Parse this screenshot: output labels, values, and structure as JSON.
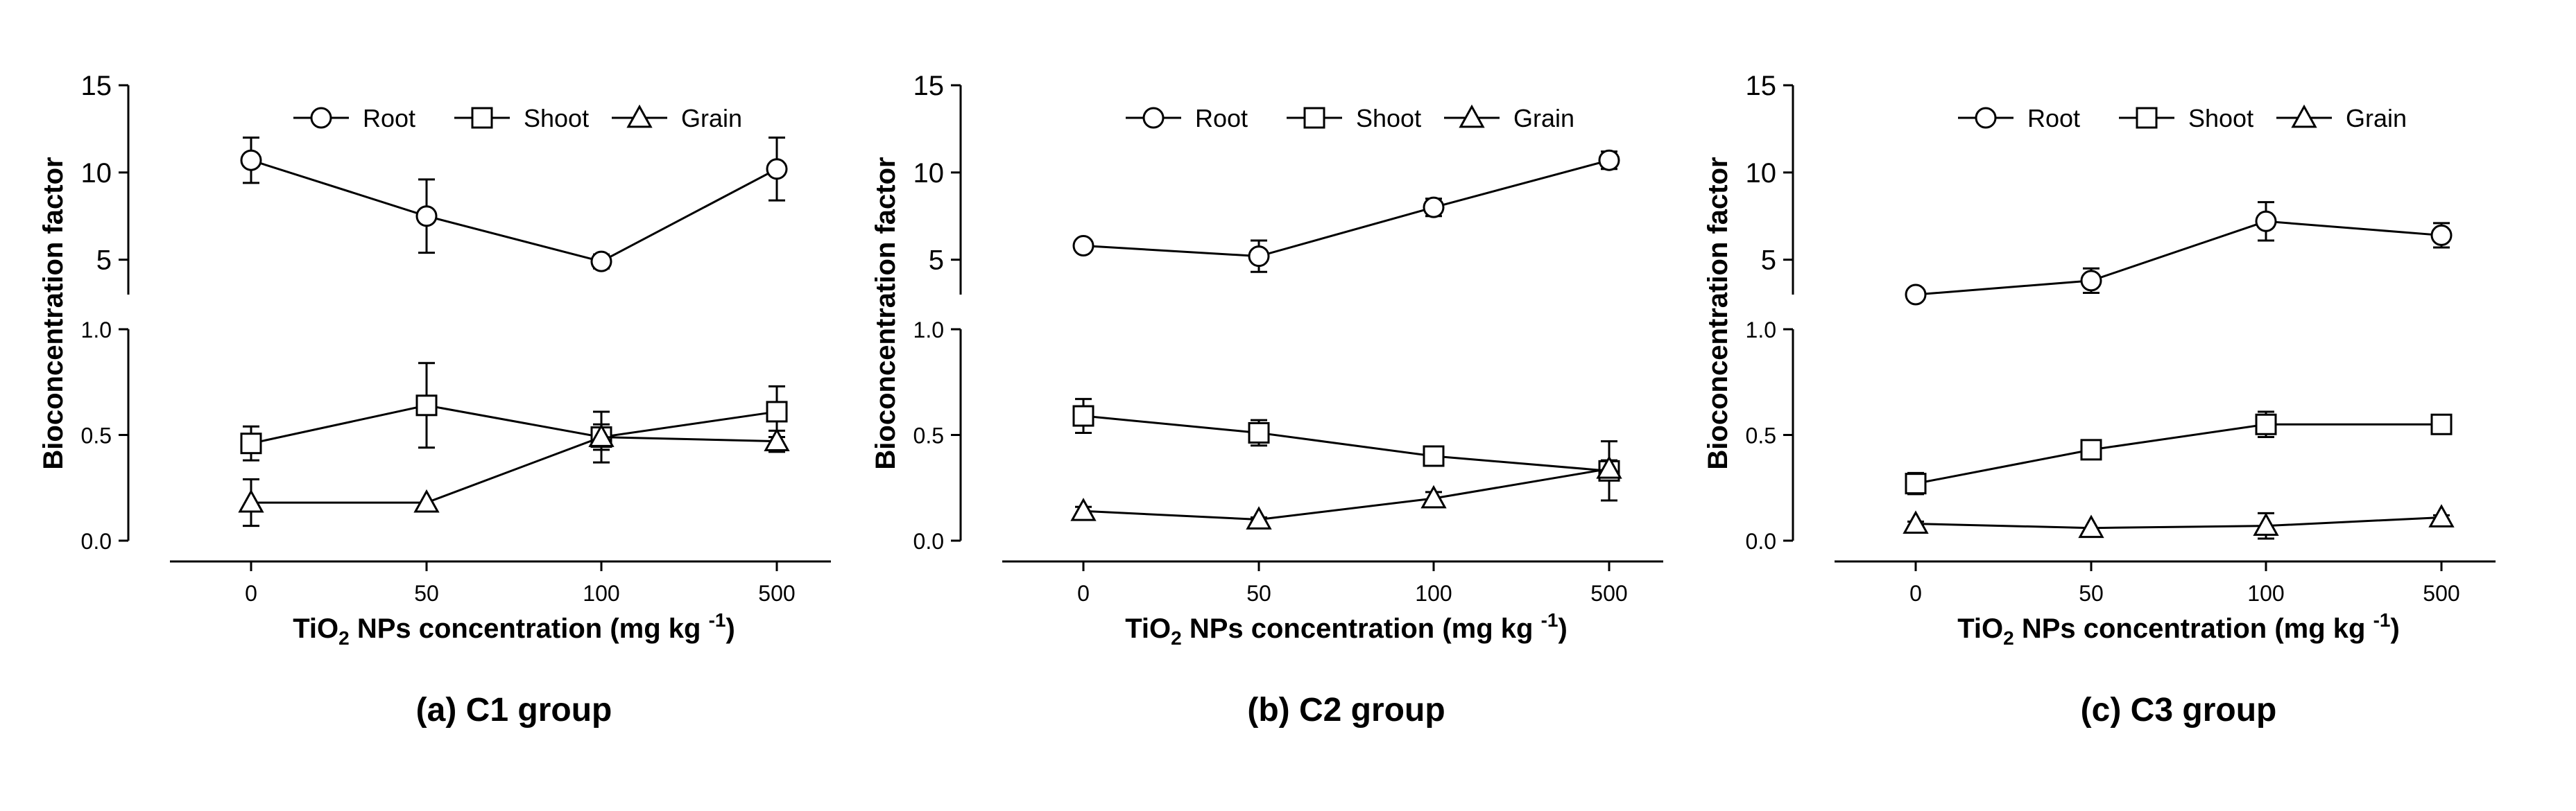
{
  "chart_data": [
    {
      "type": "line",
      "caption": "(a) C1 group",
      "ylabel": "Bioconcentration factor",
      "xlabel": {
        "prefix": "TiO",
        "sub": "2",
        "middle": " NPs concentration (mg kg ",
        "sup": "-1",
        "suffix": ")"
      },
      "categories": [
        "0",
        "50",
        "100",
        "500"
      ],
      "upper_ylim": [
        3,
        15
      ],
      "upper_yticks": [
        "5",
        "10",
        "15"
      ],
      "lower_ylim": [
        0,
        1
      ],
      "lower_yticks": [
        "0.0",
        "0.5",
        "1.0"
      ],
      "series": [
        {
          "name": "Root",
          "marker": "circle",
          "axis": "upper",
          "values": [
            10.7,
            7.5,
            4.9,
            10.2
          ],
          "errors": [
            1.3,
            2.1,
            0.4,
            1.8
          ]
        },
        {
          "name": "Shoot",
          "marker": "square",
          "axis": "lower",
          "values": [
            0.46,
            0.64,
            0.49,
            0.61
          ],
          "errors": [
            0.08,
            0.2,
            0.06,
            0.12
          ]
        },
        {
          "name": "Grain",
          "marker": "triangle",
          "axis": "lower",
          "values": [
            0.18,
            0.18,
            0.49,
            0.47
          ],
          "errors": [
            0.11,
            0.0,
            0.12,
            0.05
          ]
        }
      ]
    },
    {
      "type": "line",
      "caption": "(b) C2 group",
      "ylabel": "Bioconcentration factor",
      "xlabel": {
        "prefix": "TiO",
        "sub": "2",
        "middle": " NPs concentration (mg kg ",
        "sup": "-1",
        "suffix": ")"
      },
      "categories": [
        "0",
        "50",
        "100",
        "500"
      ],
      "upper_ylim": [
        3,
        15
      ],
      "upper_yticks": [
        "5",
        "10",
        "15"
      ],
      "lower_ylim": [
        0,
        1
      ],
      "lower_yticks": [
        "0.0",
        "0.5",
        "1.0"
      ],
      "series": [
        {
          "name": "Root",
          "marker": "circle",
          "axis": "upper",
          "values": [
            5.8,
            5.2,
            8.0,
            10.7
          ],
          "errors": [
            0.2,
            0.9,
            0.5,
            0.5
          ]
        },
        {
          "name": "Shoot",
          "marker": "square",
          "axis": "lower",
          "values": [
            0.59,
            0.51,
            0.4,
            0.33
          ],
          "errors": [
            0.08,
            0.06,
            0.03,
            0.14
          ]
        },
        {
          "name": "Grain",
          "marker": "triangle",
          "axis": "lower",
          "values": [
            0.14,
            0.1,
            0.2,
            0.34
          ],
          "errors": [
            0.02,
            0.01,
            0.03,
            0.04
          ]
        }
      ]
    },
    {
      "type": "line",
      "caption": "(c) C3 group",
      "ylabel": "Bioconcentration factor",
      "xlabel": {
        "prefix": "TiO",
        "sub": "2",
        "middle": " NPs concentration (mg kg ",
        "sup": "-1",
        "suffix": ")"
      },
      "categories": [
        "0",
        "50",
        "100",
        "500"
      ],
      "upper_ylim": [
        3,
        15
      ],
      "upper_yticks": [
        "5",
        "10",
        "15"
      ],
      "lower_ylim": [
        0,
        1
      ],
      "lower_yticks": [
        "0.0",
        "0.5",
        "1.0"
      ],
      "series": [
        {
          "name": "Root",
          "marker": "circle",
          "axis": "upper",
          "values": [
            3.0,
            3.8,
            7.2,
            6.4
          ],
          "errors": [
            0.1,
            0.7,
            1.1,
            0.7
          ]
        },
        {
          "name": "Shoot",
          "marker": "square",
          "axis": "lower",
          "values": [
            0.27,
            0.43,
            0.55,
            0.55
          ],
          "errors": [
            0.05,
            0.04,
            0.06,
            0.02
          ]
        },
        {
          "name": "Grain",
          "marker": "triangle",
          "axis": "lower",
          "values": [
            0.08,
            0.06,
            0.07,
            0.11
          ],
          "errors": [
            0.01,
            0.0,
            0.06,
            0.01
          ]
        }
      ]
    }
  ]
}
